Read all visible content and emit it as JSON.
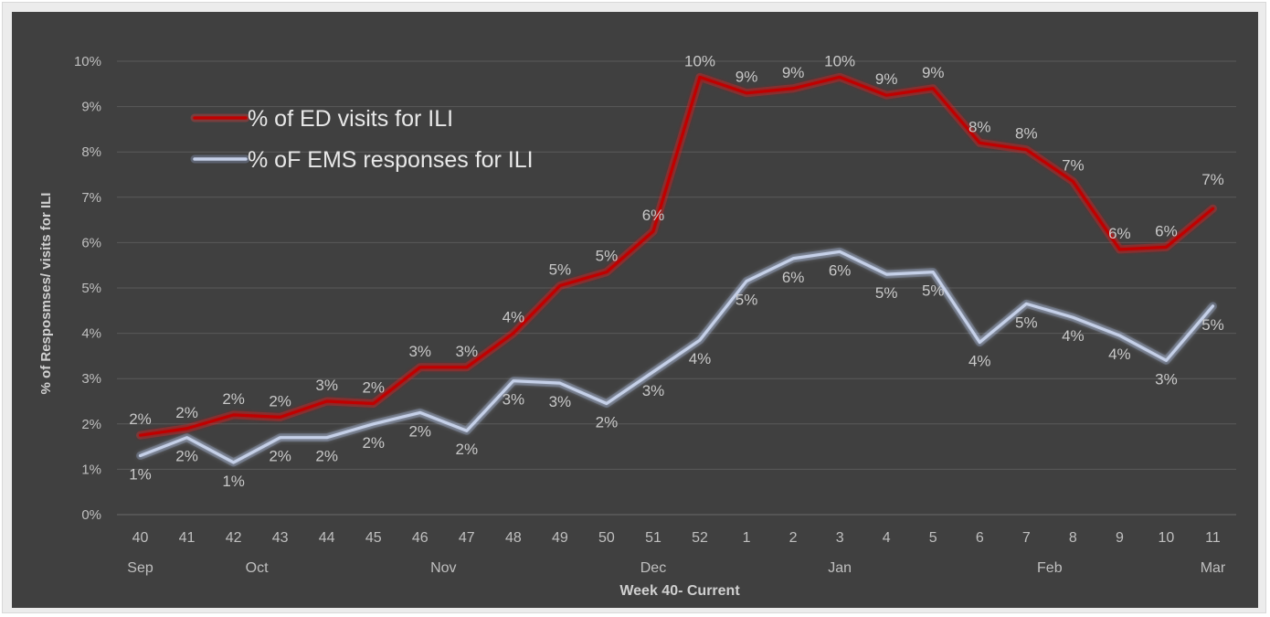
{
  "chart_data": {
    "type": "line",
    "xlabel": "Week 40- Current",
    "ylabel": "% of Resposmses/ visits for ILI",
    "ylim": [
      0,
      10
    ],
    "y_ticks": [
      "0%",
      "1%",
      "2%",
      "3%",
      "4%",
      "5%",
      "6%",
      "7%",
      "8%",
      "9%",
      "10%"
    ],
    "categories": [
      "40",
      "41",
      "42",
      "43",
      "44",
      "45",
      "46",
      "47",
      "48",
      "49",
      "50",
      "51",
      "52",
      "1",
      "2",
      "3",
      "4",
      "5",
      "6",
      "7",
      "8",
      "9",
      "10",
      "11"
    ],
    "months": [
      {
        "label": "Sep",
        "week_index": 0
      },
      {
        "label": "Oct",
        "week_index": 2.5
      },
      {
        "label": "Nov",
        "week_index": 6.5
      },
      {
        "label": "Dec",
        "week_index": 11
      },
      {
        "label": "Jan",
        "week_index": 15
      },
      {
        "label": "Feb",
        "week_index": 19.5
      },
      {
        "label": "Mar",
        "week_index": 23
      }
    ],
    "grid": true,
    "legend_position": "top-left",
    "series": [
      {
        "name": "% of ED visits for ILI",
        "color": "#c00000",
        "glow": "#ff3b3b",
        "values": [
          1.75,
          1.9,
          2.2,
          2.15,
          2.5,
          2.45,
          3.25,
          3.25,
          4.0,
          5.05,
          5.35,
          6.25,
          9.65,
          9.3,
          9.4,
          9.65,
          9.25,
          9.4,
          8.2,
          8.05,
          7.35,
          5.85,
          5.9,
          6.75
        ],
        "labels": [
          "2%",
          "2%",
          "2%",
          "2%",
          "3%",
          "2%",
          "3%",
          "3%",
          "4%",
          "5%",
          "5%",
          "6%",
          "10%",
          "9%",
          "9%",
          "10%",
          "9%",
          "9%",
          "8%",
          "8%",
          "7%",
          "6%",
          "6%",
          "7%"
        ]
      },
      {
        "name": "% oF EMS responses for ILI",
        "color": "#c5d0e8",
        "glow": "#9fb4e0",
        "values": [
          1.3,
          1.7,
          1.15,
          1.7,
          1.7,
          2.0,
          2.25,
          1.85,
          2.95,
          2.9,
          2.45,
          3.15,
          3.85,
          5.15,
          5.65,
          5.8,
          5.3,
          5.35,
          3.8,
          4.65,
          4.35,
          3.95,
          3.4,
          4.6
        ],
        "labels": [
          "1%",
          "2%",
          "1%",
          "2%",
          "2%",
          "2%",
          "2%",
          "2%",
          "3%",
          "3%",
          "2%",
          "3%",
          "4%",
          "5%",
          "6%",
          "6%",
          "5%",
          "5%",
          "4%",
          "5%",
          "4%",
          "4%",
          "3%",
          "5%"
        ]
      }
    ]
  }
}
